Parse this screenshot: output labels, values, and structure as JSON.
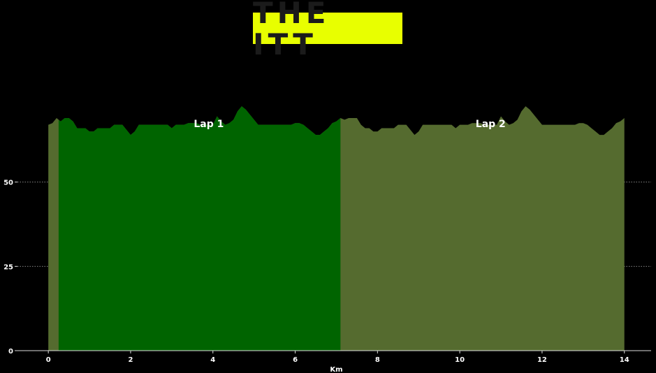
{
  "title": "THE ITT",
  "chart_data": {
    "type": "area",
    "title": "THE ITT",
    "xlabel": "Km",
    "ylabel": "",
    "xlim": [
      -0.75,
      14.65
    ],
    "ylim": [
      0,
      75
    ],
    "xticks": [
      0,
      2,
      4,
      6,
      8,
      10,
      12,
      14
    ],
    "yticks": [
      0,
      25,
      50
    ],
    "grid": "horizontal dotted",
    "annotations": [
      {
        "text": "Lap 1",
        "x": 3.9
      },
      {
        "text": "Lap 2",
        "x": 10.75
      }
    ],
    "series": [
      {
        "color": "#556b2f",
        "x_range": [
          0,
          14
        ]
      },
      {
        "color": "#006400",
        "x_range": [
          0.25,
          7.1
        ]
      }
    ],
    "profile": {
      "x": [
        0,
        0.1,
        0.2,
        0.3,
        0.4,
        0.5,
        0.6,
        0.7,
        0.8,
        0.9,
        1.0,
        1.1,
        1.2,
        1.3,
        1.4,
        1.5,
        1.6,
        1.7,
        1.8,
        1.9,
        2.0,
        2.1,
        2.2,
        2.3,
        2.4,
        2.5,
        2.6,
        2.7,
        2.8,
        2.9,
        3.0,
        3.1,
        3.2,
        3.3,
        3.4,
        3.5,
        3.6,
        3.7,
        3.8,
        3.9,
        4.0,
        4.1,
        4.2,
        4.3,
        4.4,
        4.5,
        4.6,
        4.7,
        4.8,
        4.9,
        5.0,
        5.1,
        5.2,
        5.3,
        5.4,
        5.5,
        5.6,
        5.7,
        5.8,
        5.9,
        6.0,
        6.1,
        6.2,
        6.3,
        6.4,
        6.5,
        6.6,
        6.7,
        6.8,
        6.9,
        7.0,
        7.1,
        7.2,
        7.3,
        7.4,
        7.5,
        7.6,
        7.7,
        7.8,
        7.9,
        8.0,
        8.1,
        8.2,
        8.3,
        8.4,
        8.5,
        8.6,
        8.7,
        8.8,
        8.9,
        9.0,
        9.1,
        9.2,
        9.3,
        9.4,
        9.5,
        9.6,
        9.7,
        9.8,
        9.9,
        10.0,
        10.1,
        10.2,
        10.3,
        10.4,
        10.5,
        10.6,
        10.7,
        10.8,
        10.9,
        11.0,
        11.1,
        11.2,
        11.3,
        11.4,
        11.5,
        11.6,
        11.7,
        11.8,
        11.9,
        12.0,
        12.1,
        12.2,
        12.3,
        12.4,
        12.5,
        12.6,
        12.7,
        12.8,
        12.9,
        13.0,
        13.1,
        13.2,
        13.3,
        13.4,
        13.5,
        13.6,
        13.7,
        13.8,
        13.9,
        14.0
      ],
      "y": [
        67,
        67.5,
        69,
        68,
        69,
        69,
        68,
        66,
        66,
        66,
        65,
        65,
        66,
        66,
        66,
        66,
        67,
        67,
        67,
        65.5,
        64,
        65,
        67,
        67,
        67,
        67,
        67,
        67,
        67,
        67,
        66,
        67,
        67,
        67,
        67.5,
        67.5,
        67.5,
        67,
        67,
        67,
        67,
        69.5,
        68,
        67,
        67.5,
        68.5,
        71,
        72.5,
        71.5,
        70,
        68.5,
        67,
        67,
        67,
        67,
        67,
        67,
        67,
        67,
        67,
        67.5,
        67.5,
        67,
        66,
        65,
        64,
        64,
        65,
        66,
        67.5,
        68,
        69,
        68.5,
        69,
        69,
        69,
        67,
        66,
        66,
        65,
        65,
        66,
        66,
        66,
        66,
        67,
        67,
        67,
        65.5,
        64,
        65,
        67,
        67,
        67,
        67,
        67,
        67,
        67,
        67,
        66,
        67,
        67,
        67,
        67.5,
        67.5,
        67.5,
        67,
        67,
        67,
        67,
        69.5,
        68,
        67,
        67.5,
        68.5,
        71,
        72.5,
        71.5,
        70,
        68.5,
        67,
        67,
        67,
        67,
        67,
        67,
        67,
        67,
        67,
        67.5,
        67.5,
        67,
        66,
        65,
        64,
        64,
        65,
        66,
        67.5,
        68,
        69
      ]
    }
  }
}
